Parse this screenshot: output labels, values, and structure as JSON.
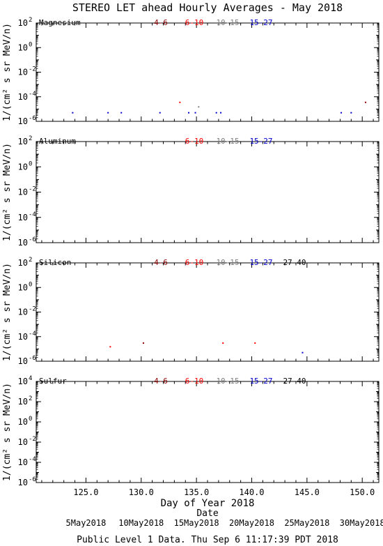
{
  "title": "STEREO LET ahead Hourly Averages - May 2018",
  "x_axis": {
    "label": "Day of Year 2018",
    "range": [
      120.5,
      151.5
    ],
    "ticks": [
      125.0,
      130.0,
      135.0,
      140.0,
      145.0,
      150.0
    ],
    "tick_labels": [
      "125.0",
      "130.0",
      "135.0",
      "140.0",
      "145.0",
      "150.0"
    ],
    "date_row_label": "Date",
    "date_labels": [
      {
        "text": "5May2018",
        "day": 125
      },
      {
        "text": "10May2018",
        "day": 130
      },
      {
        "text": "15May2018",
        "day": 135
      },
      {
        "text": "20May2018",
        "day": 140
      },
      {
        "text": "25May2018",
        "day": 145
      },
      {
        "text": "30May2018",
        "day": 150
      }
    ]
  },
  "footer": "Public Level 1 Data. Thu Sep  6 11:17:39 PDT 2018",
  "legend_colors": {
    "4-6": "#8b0000",
    "6-10": "#ff0000",
    "10-15": "#808080",
    "15-27": "#0000cc",
    "27-40": "#000000"
  },
  "chart_data": [
    {
      "type": "scatter",
      "title": "Magnesium",
      "ylabel": "1/(cm² s sr MeV/n)",
      "yscale": "log",
      "ylim_exp": [
        -6,
        2
      ],
      "y_tick_exponents": [
        2,
        0,
        -2,
        -4,
        -6
      ],
      "legend": [
        "4-6",
        "6-10",
        "10-15",
        "15-27"
      ],
      "series": [
        {
          "name": "4-6",
          "points": [
            [
              150.3,
              3.5e-05
            ]
          ]
        },
        {
          "name": "6-10",
          "points": [
            [
              133.5,
              3.5e-05
            ]
          ]
        },
        {
          "name": "10-15",
          "points": [
            [
              135.2,
              1.5e-05
            ]
          ]
        },
        {
          "name": "15-27",
          "points": [
            [
              123.8,
              5e-06
            ],
            [
              127.0,
              5e-06
            ],
            [
              128.2,
              5e-06
            ],
            [
              131.7,
              5e-06
            ],
            [
              134.3,
              5e-06
            ],
            [
              134.9,
              5e-06
            ],
            [
              136.8,
              5e-06
            ],
            [
              137.2,
              5e-06
            ],
            [
              148.1,
              5e-06
            ],
            [
              149.0,
              5e-06
            ]
          ]
        }
      ]
    },
    {
      "type": "scatter",
      "title": "Aluminum",
      "ylabel": "1/(cm² s sr MeV/n)",
      "yscale": "log",
      "ylim_exp": [
        -6,
        2
      ],
      "y_tick_exponents": [
        2,
        0,
        -2,
        -4,
        -6
      ],
      "legend": [
        "6-10",
        "10-15",
        "15-27"
      ],
      "series": []
    },
    {
      "type": "scatter",
      "title": "Silicon",
      "ylabel": "1/(cm² s sr MeV/n)",
      "yscale": "log",
      "ylim_exp": [
        -6,
        2
      ],
      "y_tick_exponents": [
        2,
        0,
        -2,
        -4,
        -6
      ],
      "legend": [
        "4-6",
        "6-10",
        "10-15",
        "15-27",
        "27-40"
      ],
      "series": [
        {
          "name": "6-10",
          "points": [
            [
              127.2,
              1.5e-05
            ],
            [
              137.4,
              3e-05
            ],
            [
              140.3,
              3e-05
            ]
          ]
        },
        {
          "name": "4-6",
          "points": [
            [
              130.2,
              3e-05
            ]
          ]
        },
        {
          "name": "15-27",
          "points": [
            [
              144.6,
              5e-06
            ]
          ]
        }
      ]
    },
    {
      "type": "scatter",
      "title": "Sulfur",
      "ylabel": "1/(cm² s sr MeV/n)",
      "yscale": "log",
      "ylim_exp": [
        -6,
        4
      ],
      "y_tick_exponents": [
        4,
        2,
        0,
        -2,
        -4,
        -6
      ],
      "legend": [
        "4-6",
        "6-10",
        "10-15",
        "15-27",
        "27-40"
      ],
      "series": []
    }
  ]
}
